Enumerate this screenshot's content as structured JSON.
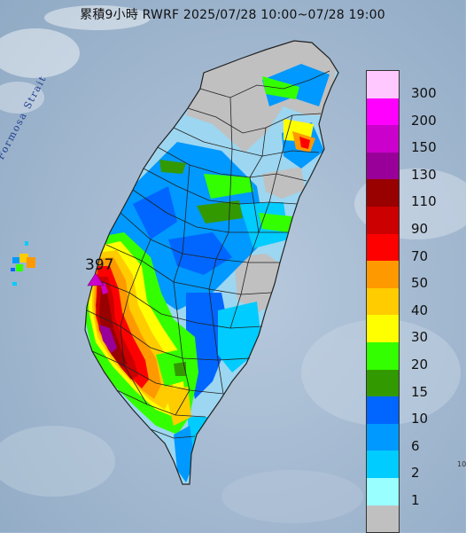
{
  "title": "累積9小時 RWRF 2025/07/28 10:00~07/28 19:00",
  "place_label": "Formosa Strait",
  "max_value_label": "397",
  "edge_text": "10",
  "legend": {
    "levels": [
      {
        "label": "300",
        "color": "#ffc8ff"
      },
      {
        "label": "200",
        "color": "#ff00ff"
      },
      {
        "label": "150",
        "color": "#cc00cc"
      },
      {
        "label": "130",
        "color": "#990099"
      },
      {
        "label": "110",
        "color": "#990000"
      },
      {
        "label": "90",
        "color": "#cc0000"
      },
      {
        "label": "70",
        "color": "#ff0000"
      },
      {
        "label": "50",
        "color": "#ff9900"
      },
      {
        "label": "40",
        "color": "#ffcc00"
      },
      {
        "label": "30",
        "color": "#ffff00"
      },
      {
        "label": "20",
        "color": "#33ff00"
      },
      {
        "label": "15",
        "color": "#339900"
      },
      {
        "label": "10",
        "color": "#0066ff"
      },
      {
        "label": "6",
        "color": "#0099ff"
      },
      {
        "label": "2",
        "color": "#00ccff"
      },
      {
        "label": "1",
        "color": "#99ffff"
      },
      {
        "label": "",
        "color": "#c0c0c0"
      }
    ]
  },
  "colors": {
    "sea": "#9fb7cf",
    "border": "#222222"
  }
}
